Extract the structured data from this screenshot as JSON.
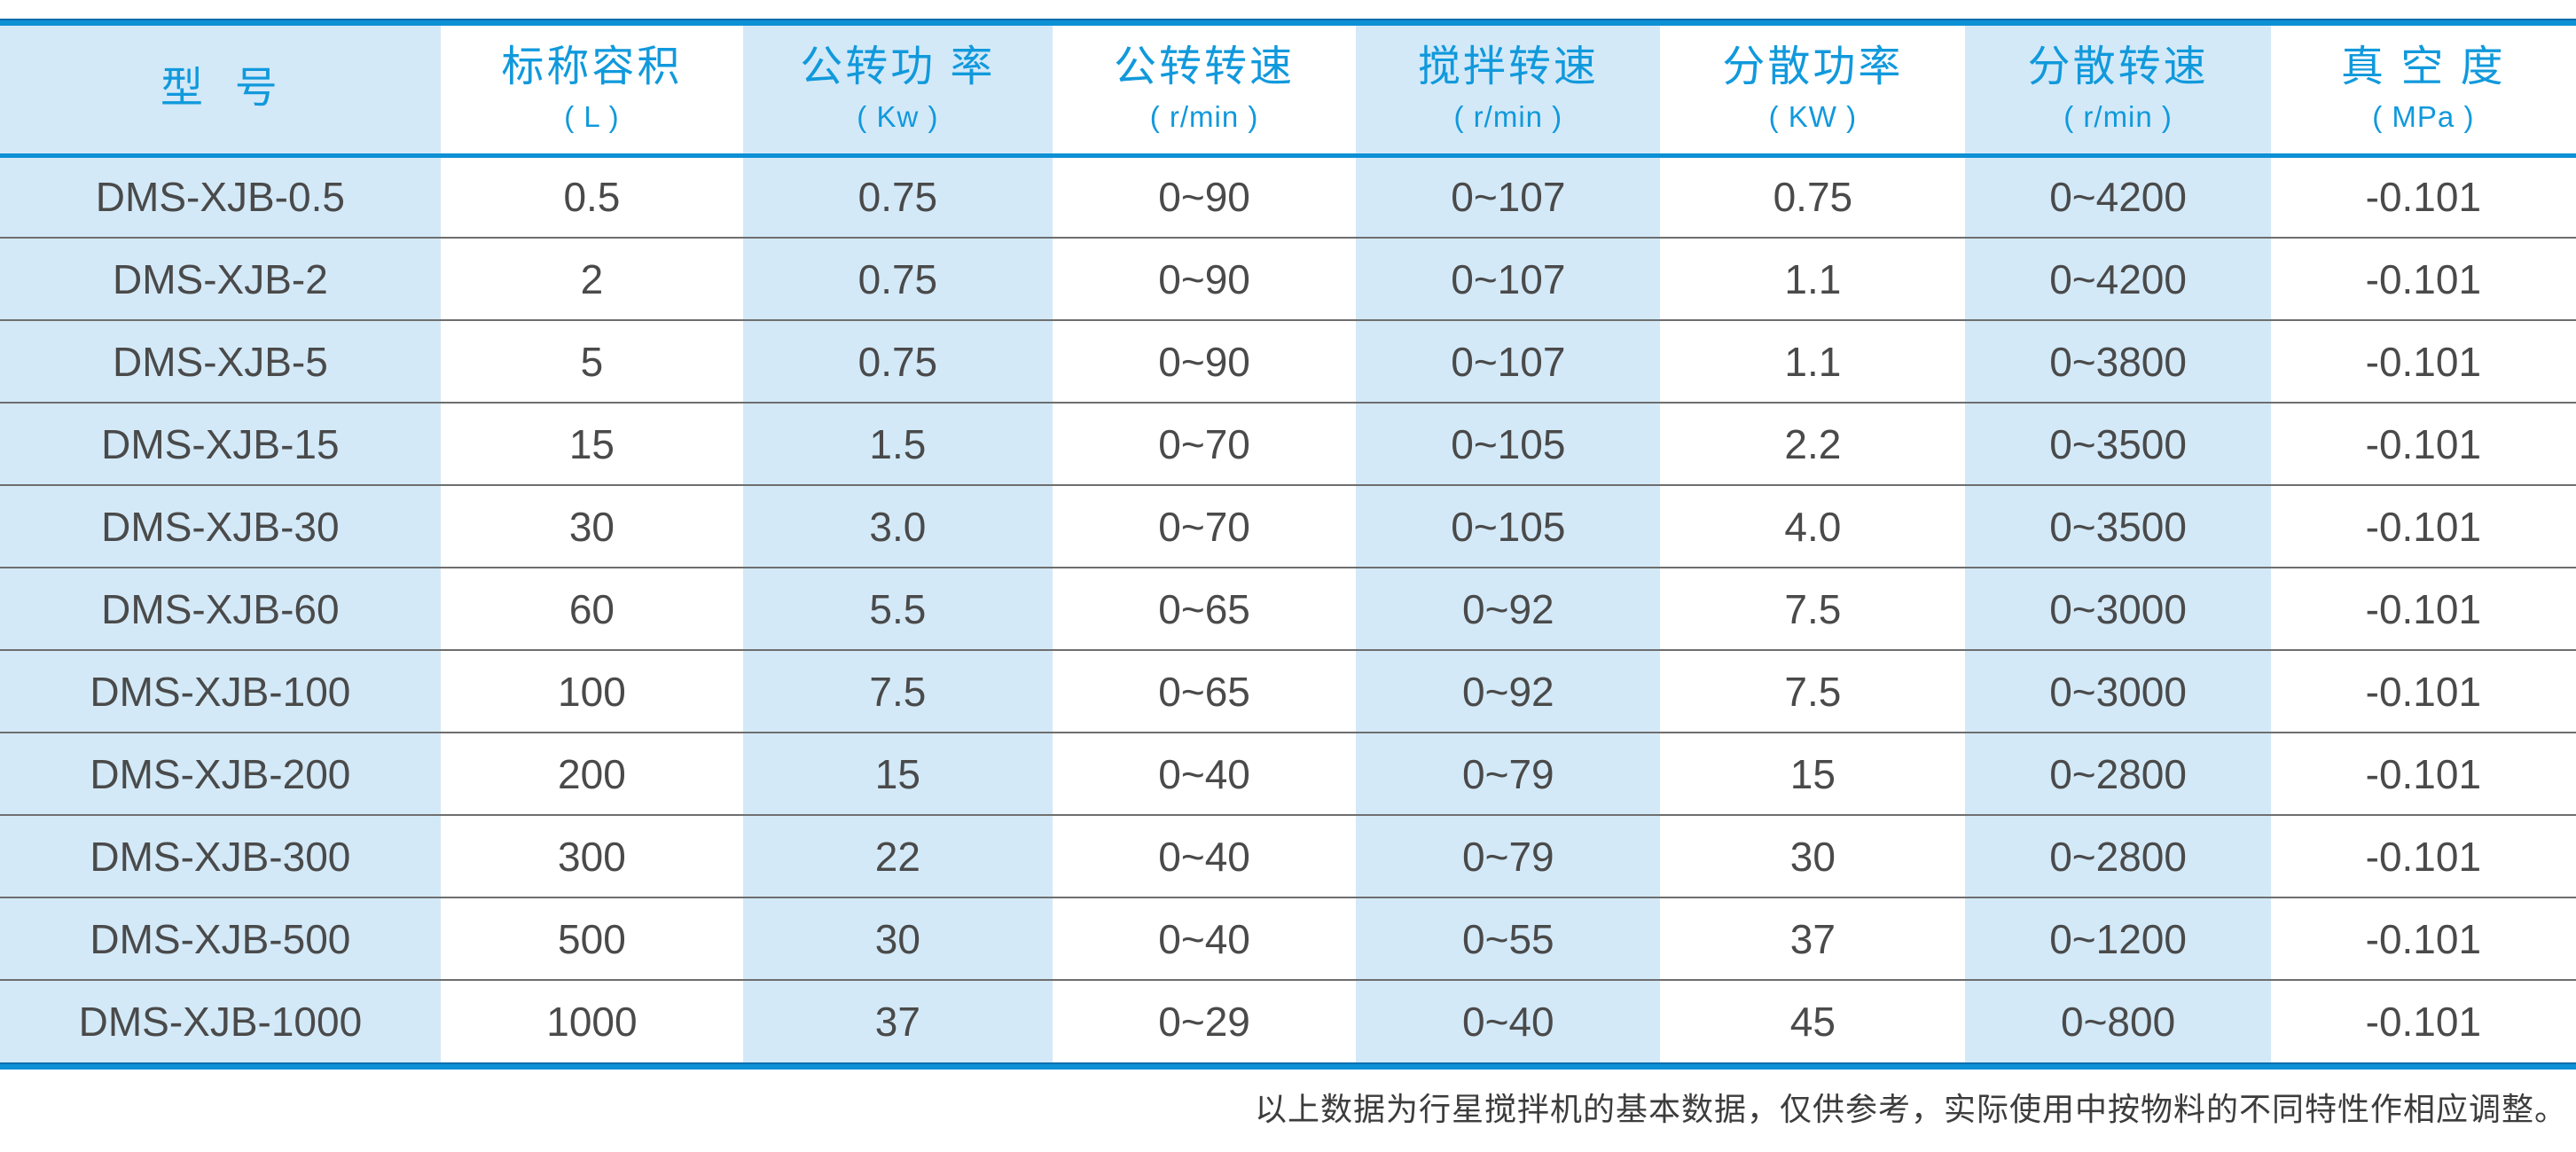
{
  "colors": {
    "accent": "#0e90d5",
    "header_text": "#1199dc",
    "light_blue": "#d3e9f8",
    "body_text": "#4a4a4a",
    "separator": "#6e6e6e",
    "footnote_text": "#3c3c3c"
  },
  "table": {
    "columns": [
      {
        "title": "型  号",
        "unit": "",
        "highlight": true
      },
      {
        "title": "标称容积",
        "unit": "( L )",
        "highlight": false
      },
      {
        "title": "公转功 率",
        "unit": "( Kw )",
        "highlight": true
      },
      {
        "title": "公转转速",
        "unit": "( r/min )",
        "highlight": false
      },
      {
        "title": "搅拌转速",
        "unit": "( r/min )",
        "highlight": true
      },
      {
        "title": "分散功率",
        "unit": "( KW )",
        "highlight": false
      },
      {
        "title": "分散转速",
        "unit": "( r/min )",
        "highlight": true
      },
      {
        "title": "真 空 度",
        "unit": "( MPa )",
        "highlight": false
      }
    ],
    "rows": [
      [
        "DMS-XJB-0.5",
        "0.5",
        "0.75",
        "0~90",
        "0~107",
        "0.75",
        "0~4200",
        "-0.101"
      ],
      [
        "DMS-XJB-2",
        "2",
        "0.75",
        "0~90",
        "0~107",
        "1.1",
        "0~4200",
        "-0.101"
      ],
      [
        "DMS-XJB-5",
        "5",
        "0.75",
        "0~90",
        "0~107",
        "1.1",
        "0~3800",
        "-0.101"
      ],
      [
        "DMS-XJB-15",
        "15",
        "1.5",
        "0~70",
        "0~105",
        "2.2",
        "0~3500",
        "-0.101"
      ],
      [
        "DMS-XJB-30",
        "30",
        "3.0",
        "0~70",
        "0~105",
        "4.0",
        "0~3500",
        "-0.101"
      ],
      [
        "DMS-XJB-60",
        "60",
        "5.5",
        "0~65",
        "0~92",
        "7.5",
        "0~3000",
        "-0.101"
      ],
      [
        "DMS-XJB-100",
        "100",
        "7.5",
        "0~65",
        "0~92",
        "7.5",
        "0~3000",
        "-0.101"
      ],
      [
        "DMS-XJB-200",
        "200",
        "15",
        "0~40",
        "0~79",
        "15",
        "0~2800",
        "-0.101"
      ],
      [
        "DMS-XJB-300",
        "300",
        "22",
        "0~40",
        "0~79",
        "30",
        "0~2800",
        "-0.101"
      ],
      [
        "DMS-XJB-500",
        "500",
        "30",
        "0~40",
        "0~55",
        "37",
        "0~1200",
        "-0.101"
      ],
      [
        "DMS-XJB-1000",
        "1000",
        "37",
        "0~29",
        "0~40",
        "45",
        "0~800",
        "-0.101"
      ]
    ]
  },
  "footnote": "以上数据为行星搅拌机的基本数据，仅供参考，实际使用中按物料的不同特性作相应调整。"
}
